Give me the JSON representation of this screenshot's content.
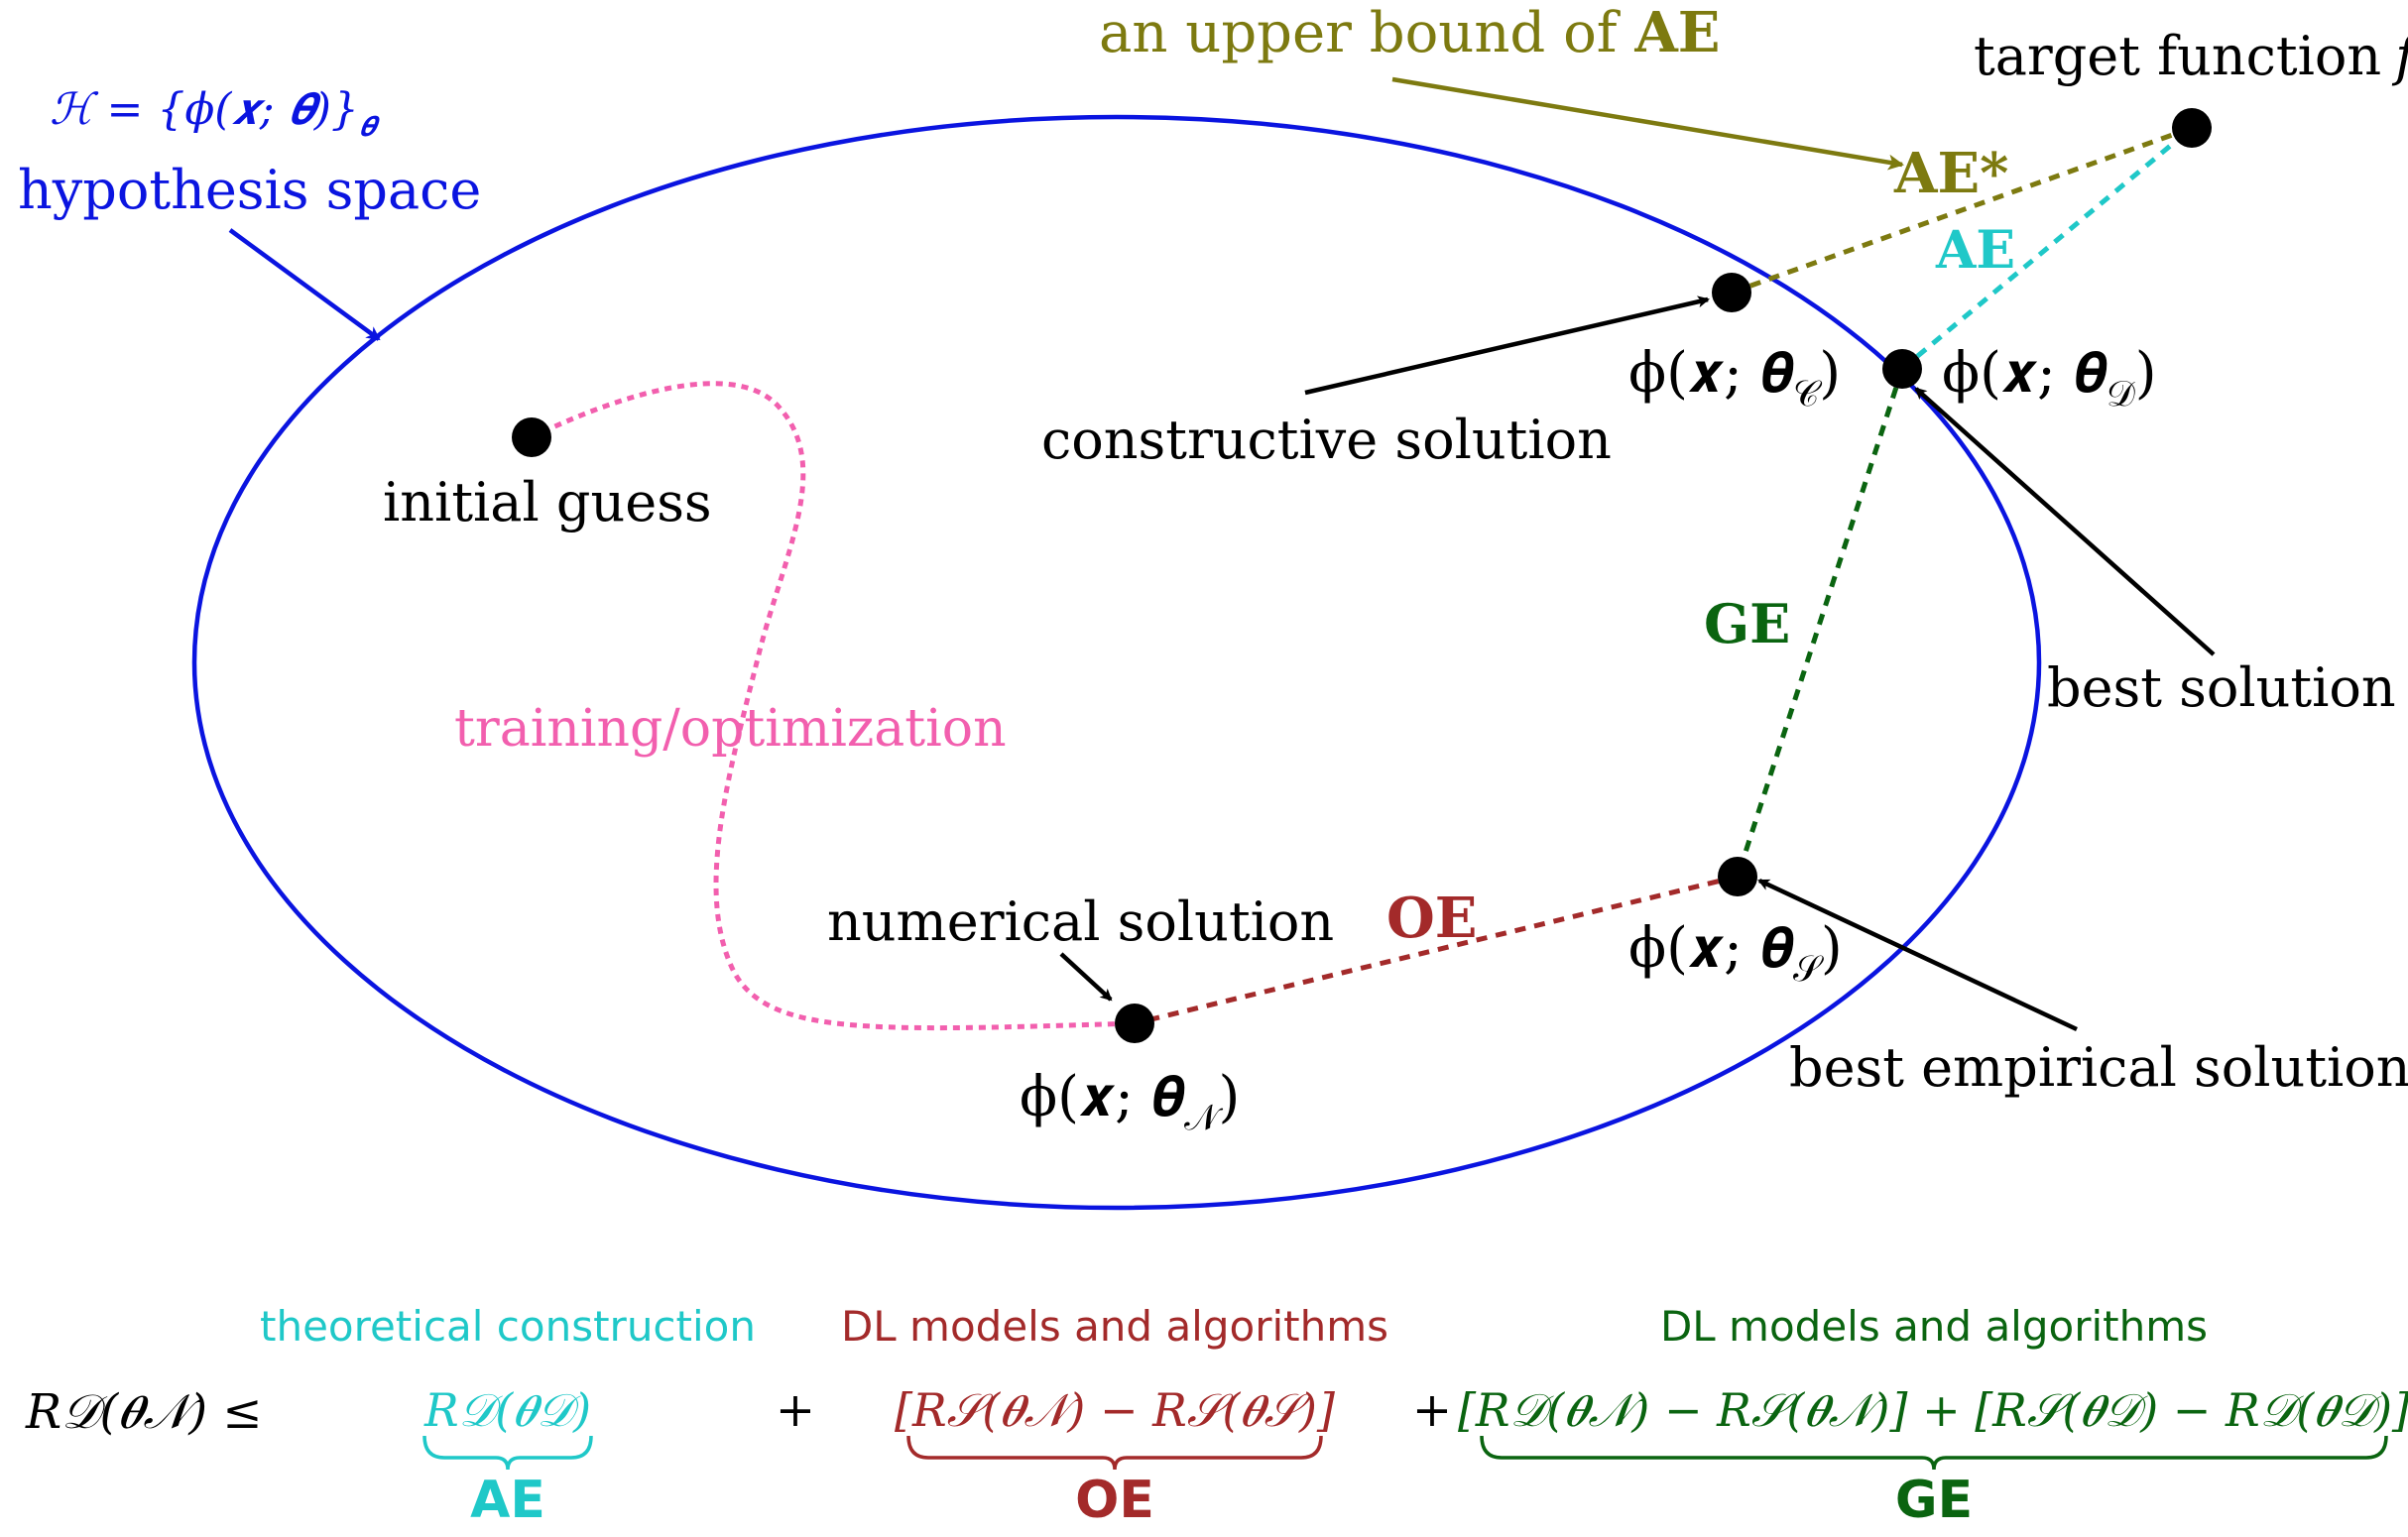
{
  "hypothesis": {
    "formula": "ℋ = {ϕ(𝒙; 𝜽)}",
    "formula_sub": "𝜽",
    "label": "hypothesis space",
    "color": "#0a14e0"
  },
  "target": {
    "label": "target function",
    "symbol": "f"
  },
  "annotation": {
    "prefix": "an upper bound of ",
    "bold": "AE",
    "color": "#7d7a10"
  },
  "errors": {
    "ae_star": "AE*",
    "ae": "AE",
    "ge": "GE",
    "oe": "OE"
  },
  "points": {
    "constructive": {
      "phi": "ϕ(𝒙; 𝜽",
      "sub": "𝒞",
      "close": ")",
      "label": "constructive solution"
    },
    "best": {
      "phi": "ϕ(𝒙; 𝜽",
      "sub": "𝒟",
      "close": ")",
      "label": "best solution"
    },
    "empirical": {
      "phi": "ϕ(𝒙; 𝜽",
      "sub": "𝒮",
      "close": ")",
      "label": "best empirical solution"
    },
    "numerical": {
      "phi": "ϕ(𝒙; 𝜽",
      "sub": "𝒩",
      "close": ")",
      "label": "numerical solution"
    },
    "initial": {
      "label": "initial guess"
    }
  },
  "training_label": "training/optimization",
  "formula": {
    "lhs": "R𝒟(𝜽𝒩) ≤",
    "plus1": "+",
    "plus2": "+",
    "term_ae": {
      "top": "theoretical construction",
      "expr": "R𝒟(𝜽𝒟)",
      "name": "AE"
    },
    "term_oe": {
      "top": "DL models and algorithms",
      "expr": "[R𝒮(𝜽𝒩) − R𝒮(𝜽𝒮)]",
      "name": "OE"
    },
    "term_ge": {
      "top": "DL models and algorithms",
      "expr": "[R𝒟(𝜽𝒩) − R𝒮(𝜽𝒩)] + [R𝒮(𝜽𝒟) − R𝒟(𝜽𝒟)]",
      "name": "GE"
    }
  },
  "colors": {
    "blue": "#0a14e0",
    "olive": "#7d7a10",
    "cyan": "#1fc8c8",
    "green": "#0a6410",
    "red": "#a32a2a",
    "pink": "#f25fae",
    "black": "#000000"
  }
}
